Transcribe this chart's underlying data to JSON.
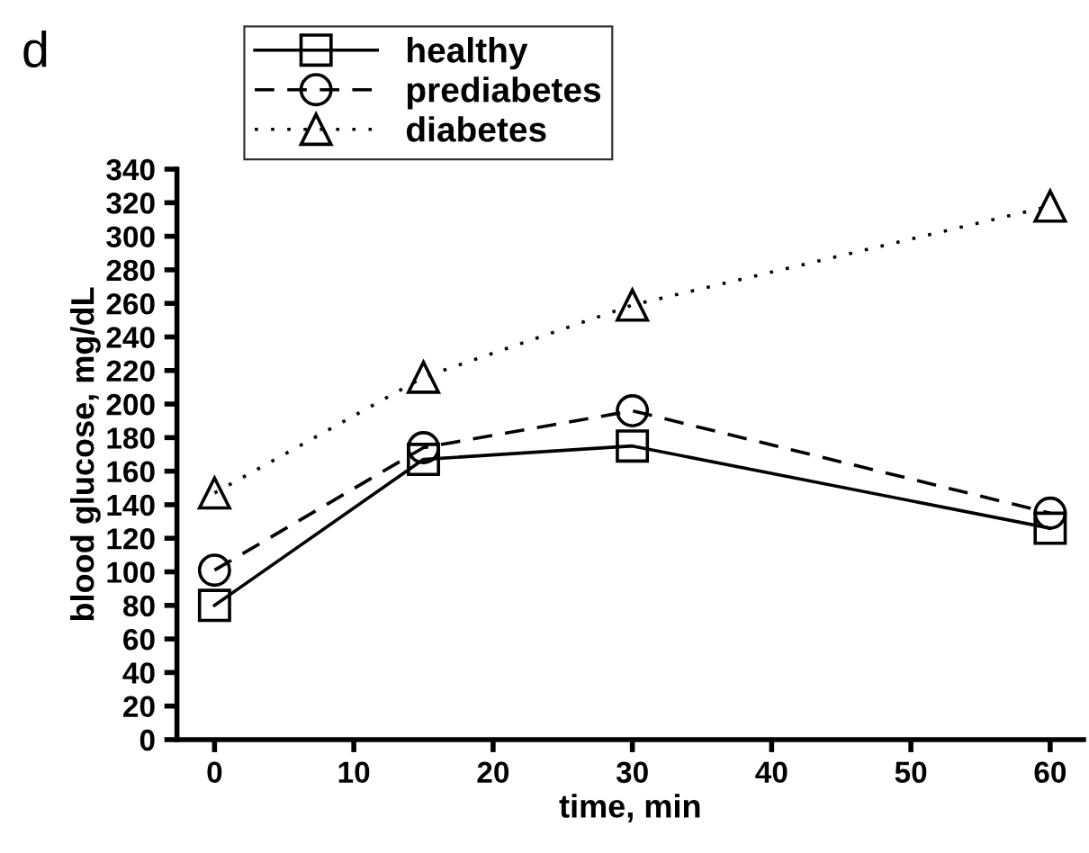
{
  "chart_data": {
    "type": "line",
    "title": "d",
    "xlabel": "time, min",
    "ylabel": "blood glucose, mg/dL",
    "x": [
      0,
      15,
      30,
      60
    ],
    "series": [
      {
        "name": "healthy",
        "color": "#000000",
        "values": [
          80,
          167,
          175,
          126
        ],
        "marker": "square",
        "line_style": "solid"
      },
      {
        "name": "prediabetes",
        "color": "#000000",
        "values": [
          101,
          174,
          196,
          135
        ],
        "marker": "circle",
        "line_style": "dashed"
      },
      {
        "name": "diabetes",
        "color": "#000000",
        "values": [
          147,
          216,
          259,
          318
        ],
        "marker": "triangle",
        "line_style": "dotted"
      }
    ],
    "xlim": [
      -2.7,
      62.4
    ],
    "ylim": [
      0,
      340
    ],
    "xticks": [
      0,
      10,
      20,
      30,
      40,
      50,
      60
    ],
    "yticks": [
      0,
      20,
      40,
      60,
      80,
      100,
      120,
      140,
      160,
      180,
      200,
      220,
      240,
      260,
      280,
      300,
      320,
      340
    ],
    "grid": false,
    "legend": "top left"
  }
}
